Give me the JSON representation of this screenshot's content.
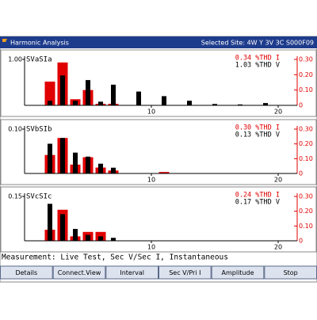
{
  "header": {
    "title": "Harmonic Analysis",
    "site": "Selected Site: 4W Y 3V 3C S000F09"
  },
  "chart_data": [
    {
      "type": "bar",
      "title": "SVaSIa",
      "annotations": [
        {
          "text": "0.34 %THD I",
          "color": "#e00000"
        },
        {
          "text": "1.03 %THD V",
          "color": "#000000"
        }
      ],
      "x": [
        2,
        3,
        4,
        5,
        6,
        7,
        8,
        9,
        10,
        11,
        12,
        13,
        14,
        15,
        16,
        17,
        18,
        19,
        20
      ],
      "xlim": [
        0,
        21.5
      ],
      "xticks": [
        10,
        20
      ],
      "ylim": [
        0,
        1
      ],
      "yticks": [
        {
          "value": 1,
          "label": "1.00"
        }
      ],
      "y2lim": [
        0,
        0.3
      ],
      "y2ticks": [
        0,
        {
          "value": 0.1,
          "label": "0.10"
        },
        {
          "value": 0.2,
          "label": "0.20"
        },
        {
          "value": 0.3,
          "label": "0.30"
        }
      ],
      "series": [
        {
          "color": "#e00000",
          "axis": "y2",
          "values": [
            0.155,
            0.28,
            0.04,
            0.1,
            0.01,
            0.01,
            null,
            null,
            null,
            null,
            null,
            null,
            null,
            null,
            null,
            null,
            null,
            null,
            null
          ]
        },
        {
          "color": "#000000",
          "values": [
            0.1,
            0.65,
            0.1,
            0.55,
            0.08,
            0.45,
            null,
            0.3,
            null,
            0.2,
            null,
            0.1,
            null,
            0.03,
            null,
            0.02,
            null,
            0.05,
            null
          ]
        }
      ]
    },
    {
      "type": "bar",
      "title": "SVbSIb",
      "annotations": [
        {
          "text": "0.30 %THD I",
          "color": "#e00000"
        },
        {
          "text": "0.13 %THD V",
          "color": "#000000"
        }
      ],
      "x": [
        2,
        3,
        4,
        5,
        6,
        7,
        8,
        9,
        10,
        11,
        12,
        13,
        14,
        15,
        16,
        17,
        18,
        19,
        20
      ],
      "xlim": [
        0,
        21.5
      ],
      "xticks": [
        10,
        20
      ],
      "ylim": [
        0,
        0.1
      ],
      "yticks": [
        {
          "value": 0.1,
          "label": "0.10"
        }
      ],
      "y2lim": [
        0,
        0.3
      ],
      "y2ticks": [
        0,
        {
          "value": 0.1,
          "label": "0.10"
        },
        {
          "value": 0.2,
          "label": "0.20"
        },
        {
          "value": 0.3,
          "label": "0.30"
        }
      ],
      "series": [
        {
          "color": "#e00000",
          "axis": "y2",
          "values": [
            0.125,
            0.24,
            0.06,
            0.11,
            0.04,
            0.02,
            null,
            null,
            null,
            0.01,
            null,
            null,
            null,
            null,
            null,
            null,
            null,
            null,
            null
          ]
        },
        {
          "color": "#000000",
          "values": [
            0.067,
            0.08,
            0.047,
            0.038,
            0.022,
            0.013,
            null,
            null,
            null,
            null,
            null,
            null,
            null,
            null,
            null,
            null,
            null,
            null,
            null
          ]
        }
      ]
    },
    {
      "type": "bar",
      "title": "SVcSIc",
      "annotations": [
        {
          "text": "0.24 %THD I",
          "color": "#e00000"
        },
        {
          "text": "0.17 %THD V",
          "color": "#000000"
        }
      ],
      "x": [
        2,
        3,
        4,
        5,
        6,
        7,
        8,
        9,
        10,
        11,
        12,
        13,
        14,
        15,
        16,
        17,
        18,
        19,
        20
      ],
      "xlim": [
        0,
        21.5
      ],
      "xticks": [
        10,
        20
      ],
      "ylim": [
        0,
        0.15
      ],
      "yticks": [
        {
          "value": 0.15,
          "label": "0.15"
        }
      ],
      "y2lim": [
        0,
        0.3
      ],
      "y2ticks": [
        0,
        {
          "value": 0.1,
          "label": "0.10"
        },
        {
          "value": 0.2,
          "label": "0.20"
        },
        {
          "value": 0.3,
          "label": "0.30"
        }
      ],
      "series": [
        {
          "color": "#e00000",
          "axis": "y2",
          "values": [
            0.075,
            0.21,
            0.03,
            0.06,
            0.06,
            null,
            null,
            null,
            null,
            null,
            null,
            null,
            null,
            null,
            null,
            null,
            null,
            null,
            null
          ]
        },
        {
          "color": "#000000",
          "values": [
            0.125,
            0.09,
            0.04,
            0.02,
            0.015,
            0.01,
            null,
            null,
            null,
            null,
            null,
            null,
            null,
            null,
            null,
            null,
            null,
            null,
            null
          ]
        }
      ]
    }
  ],
  "status": "Measurement: Live Test, Sec V/Sec I, Instantaneous",
  "buttons": [
    "Details",
    "Connect.View",
    "Interval",
    "Sec V/Pri I",
    "Amplitude",
    "Stop"
  ]
}
